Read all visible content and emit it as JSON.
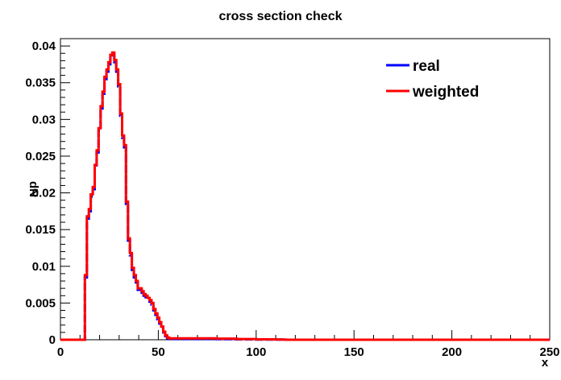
{
  "chart_data": {
    "type": "line",
    "title": "cross section check",
    "xlabel": "x",
    "ylabel": "dN",
    "xlim": [
      0,
      250
    ],
    "ylim": [
      0,
      0.041
    ],
    "xticks": [
      "0",
      "50",
      "100",
      "150",
      "200",
      "250"
    ],
    "yticks": [
      "0",
      "0.005",
      "0.01",
      "0.015",
      "0.02",
      "0.025",
      "0.03",
      "0.035",
      "0.04"
    ],
    "legend_position": "top-right",
    "series": [
      {
        "name": "real",
        "color": "#0000ff",
        "x": [
          0,
          11.5,
          12.5,
          13.5,
          14.5,
          15.5,
          16.5,
          17.5,
          18.5,
          19.5,
          20.5,
          21.5,
          22.5,
          23.5,
          24.5,
          25.5,
          26.5,
          27.5,
          28.5,
          29.5,
          30.5,
          31.5,
          32.5,
          33.5,
          34.5,
          35.5,
          36.5,
          37.5,
          38.5,
          39.5,
          40.5,
          41.5,
          42.5,
          43.5,
          44.5,
          45.5,
          46.5,
          47.5,
          48.5,
          49.5,
          50.5,
          51.5,
          52.5,
          53.5,
          54.5,
          55.5,
          56.5,
          57.5,
          58.5,
          59.5,
          60.5,
          61.5,
          62.5,
          63.5,
          65,
          70,
          80,
          90,
          100,
          110,
          115,
          120,
          150,
          200,
          250
        ],
        "y": [
          0,
          0,
          0.0085,
          0.0165,
          0.0175,
          0.0195,
          0.0205,
          0.0235,
          0.0255,
          0.0285,
          0.0315,
          0.0335,
          0.0355,
          0.0365,
          0.0375,
          0.0385,
          0.0388,
          0.0378,
          0.0365,
          0.0345,
          0.0305,
          0.0275,
          0.0262,
          0.0185,
          0.0135,
          0.0115,
          0.0095,
          0.0085,
          0.0078,
          0.0068,
          0.0068,
          0.0064,
          0.006,
          0.0058,
          0.0055,
          0.0052,
          0.0048,
          0.004,
          0.0034,
          0.0028,
          0.0022,
          0.0016,
          0.001,
          0.0005,
          0.0002,
          0.0001,
          0.0001,
          0.0001,
          0.0001,
          0.0001,
          0.0001,
          0.0001,
          0.0001,
          0.0001,
          0.0001,
          0.0001,
          8e-05,
          5e-05,
          3e-05,
          2e-05,
          0,
          0,
          0,
          0,
          0
        ]
      },
      {
        "name": "weighted",
        "color": "#ff0000",
        "x": [
          0,
          11.5,
          12.5,
          13.5,
          14.5,
          15.5,
          16.5,
          17.5,
          18.5,
          19.5,
          20.5,
          21.5,
          22.5,
          23.5,
          24.5,
          25.5,
          26.5,
          27.5,
          28.5,
          29.5,
          30.5,
          31.5,
          32.5,
          33.5,
          34.5,
          35.5,
          36.5,
          37.5,
          38.5,
          39.5,
          40.5,
          41.5,
          42.5,
          43.5,
          44.5,
          45.5,
          46.5,
          47.5,
          48.5,
          49.5,
          50.5,
          51.5,
          52.5,
          53.5,
          54.5,
          55.5,
          56.5,
          57.5,
          58.5,
          59.5,
          60.5,
          61.5,
          62.5,
          63.5,
          65,
          70,
          80,
          90,
          100,
          110,
          115,
          120,
          150,
          200,
          250
        ],
        "y": [
          0,
          0,
          0.0088,
          0.0168,
          0.0178,
          0.0198,
          0.0208,
          0.0238,
          0.0258,
          0.0288,
          0.0318,
          0.0338,
          0.0358,
          0.0368,
          0.0378,
          0.0388,
          0.0391,
          0.0381,
          0.0368,
          0.0348,
          0.0308,
          0.0278,
          0.0265,
          0.0188,
          0.0138,
          0.0118,
          0.0098,
          0.0088,
          0.008,
          0.007,
          0.007,
          0.0066,
          0.0062,
          0.006,
          0.0057,
          0.0054,
          0.005,
          0.0042,
          0.0036,
          0.003,
          0.0024,
          0.0018,
          0.0011,
          0.0006,
          0.0003,
          0.0002,
          0.0002,
          0.0002,
          0.0002,
          0.0002,
          0.0002,
          0.0002,
          0.0002,
          0.0002,
          0.0002,
          0.0002,
          0.00015,
          0.0001,
          5e-05,
          3e-05,
          0,
          0,
          0,
          0,
          0
        ]
      }
    ]
  }
}
